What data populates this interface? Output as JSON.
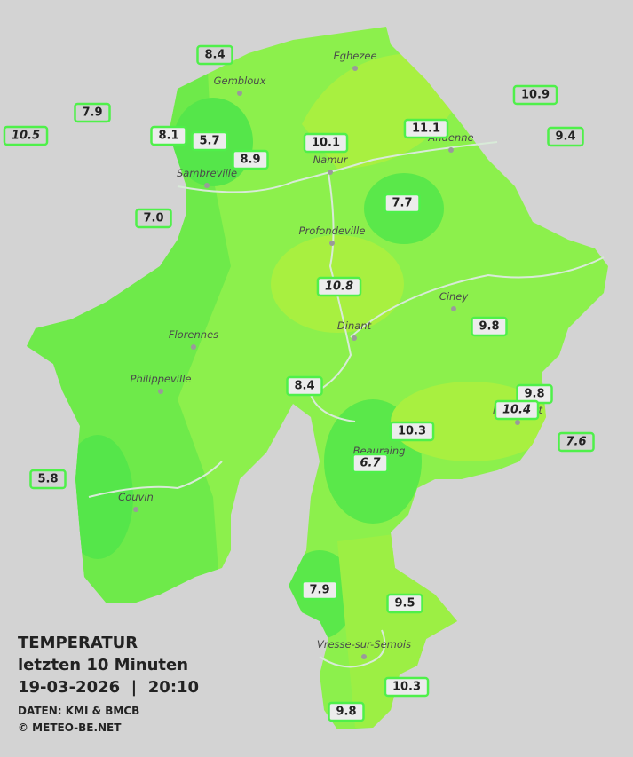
{
  "title": {
    "heading": "TEMPERATUR",
    "period": "letzten 10 Minuten",
    "timestamp": "19-03-2026  |  20:10",
    "source": "DATEN: KMI & BMCB",
    "credit": "© METEO-BE.NET"
  },
  "cities": [
    "Eghezee",
    "Gembloux",
    "Andenne",
    "Namur",
    "Sambreville",
    "Profondeville",
    "Ciney",
    "Dinant",
    "Florennes",
    "Philippeville",
    "Rochefort",
    "Beauraing",
    "Couvin",
    "Vresse-sur-Semois"
  ],
  "stations": [
    "8.4",
    "7.9",
    "10.5",
    "8.1",
    "5.7",
    "8.9",
    "10.1",
    "11.1",
    "10.9",
    "9.4",
    "7.7",
    "7.0",
    "10.8",
    "9.8",
    "8.4",
    "9.8",
    "10.4",
    "10.3",
    "7.6",
    "6.7",
    "5.8",
    "7.9",
    "9.5",
    "10.3",
    "9.8"
  ]
}
